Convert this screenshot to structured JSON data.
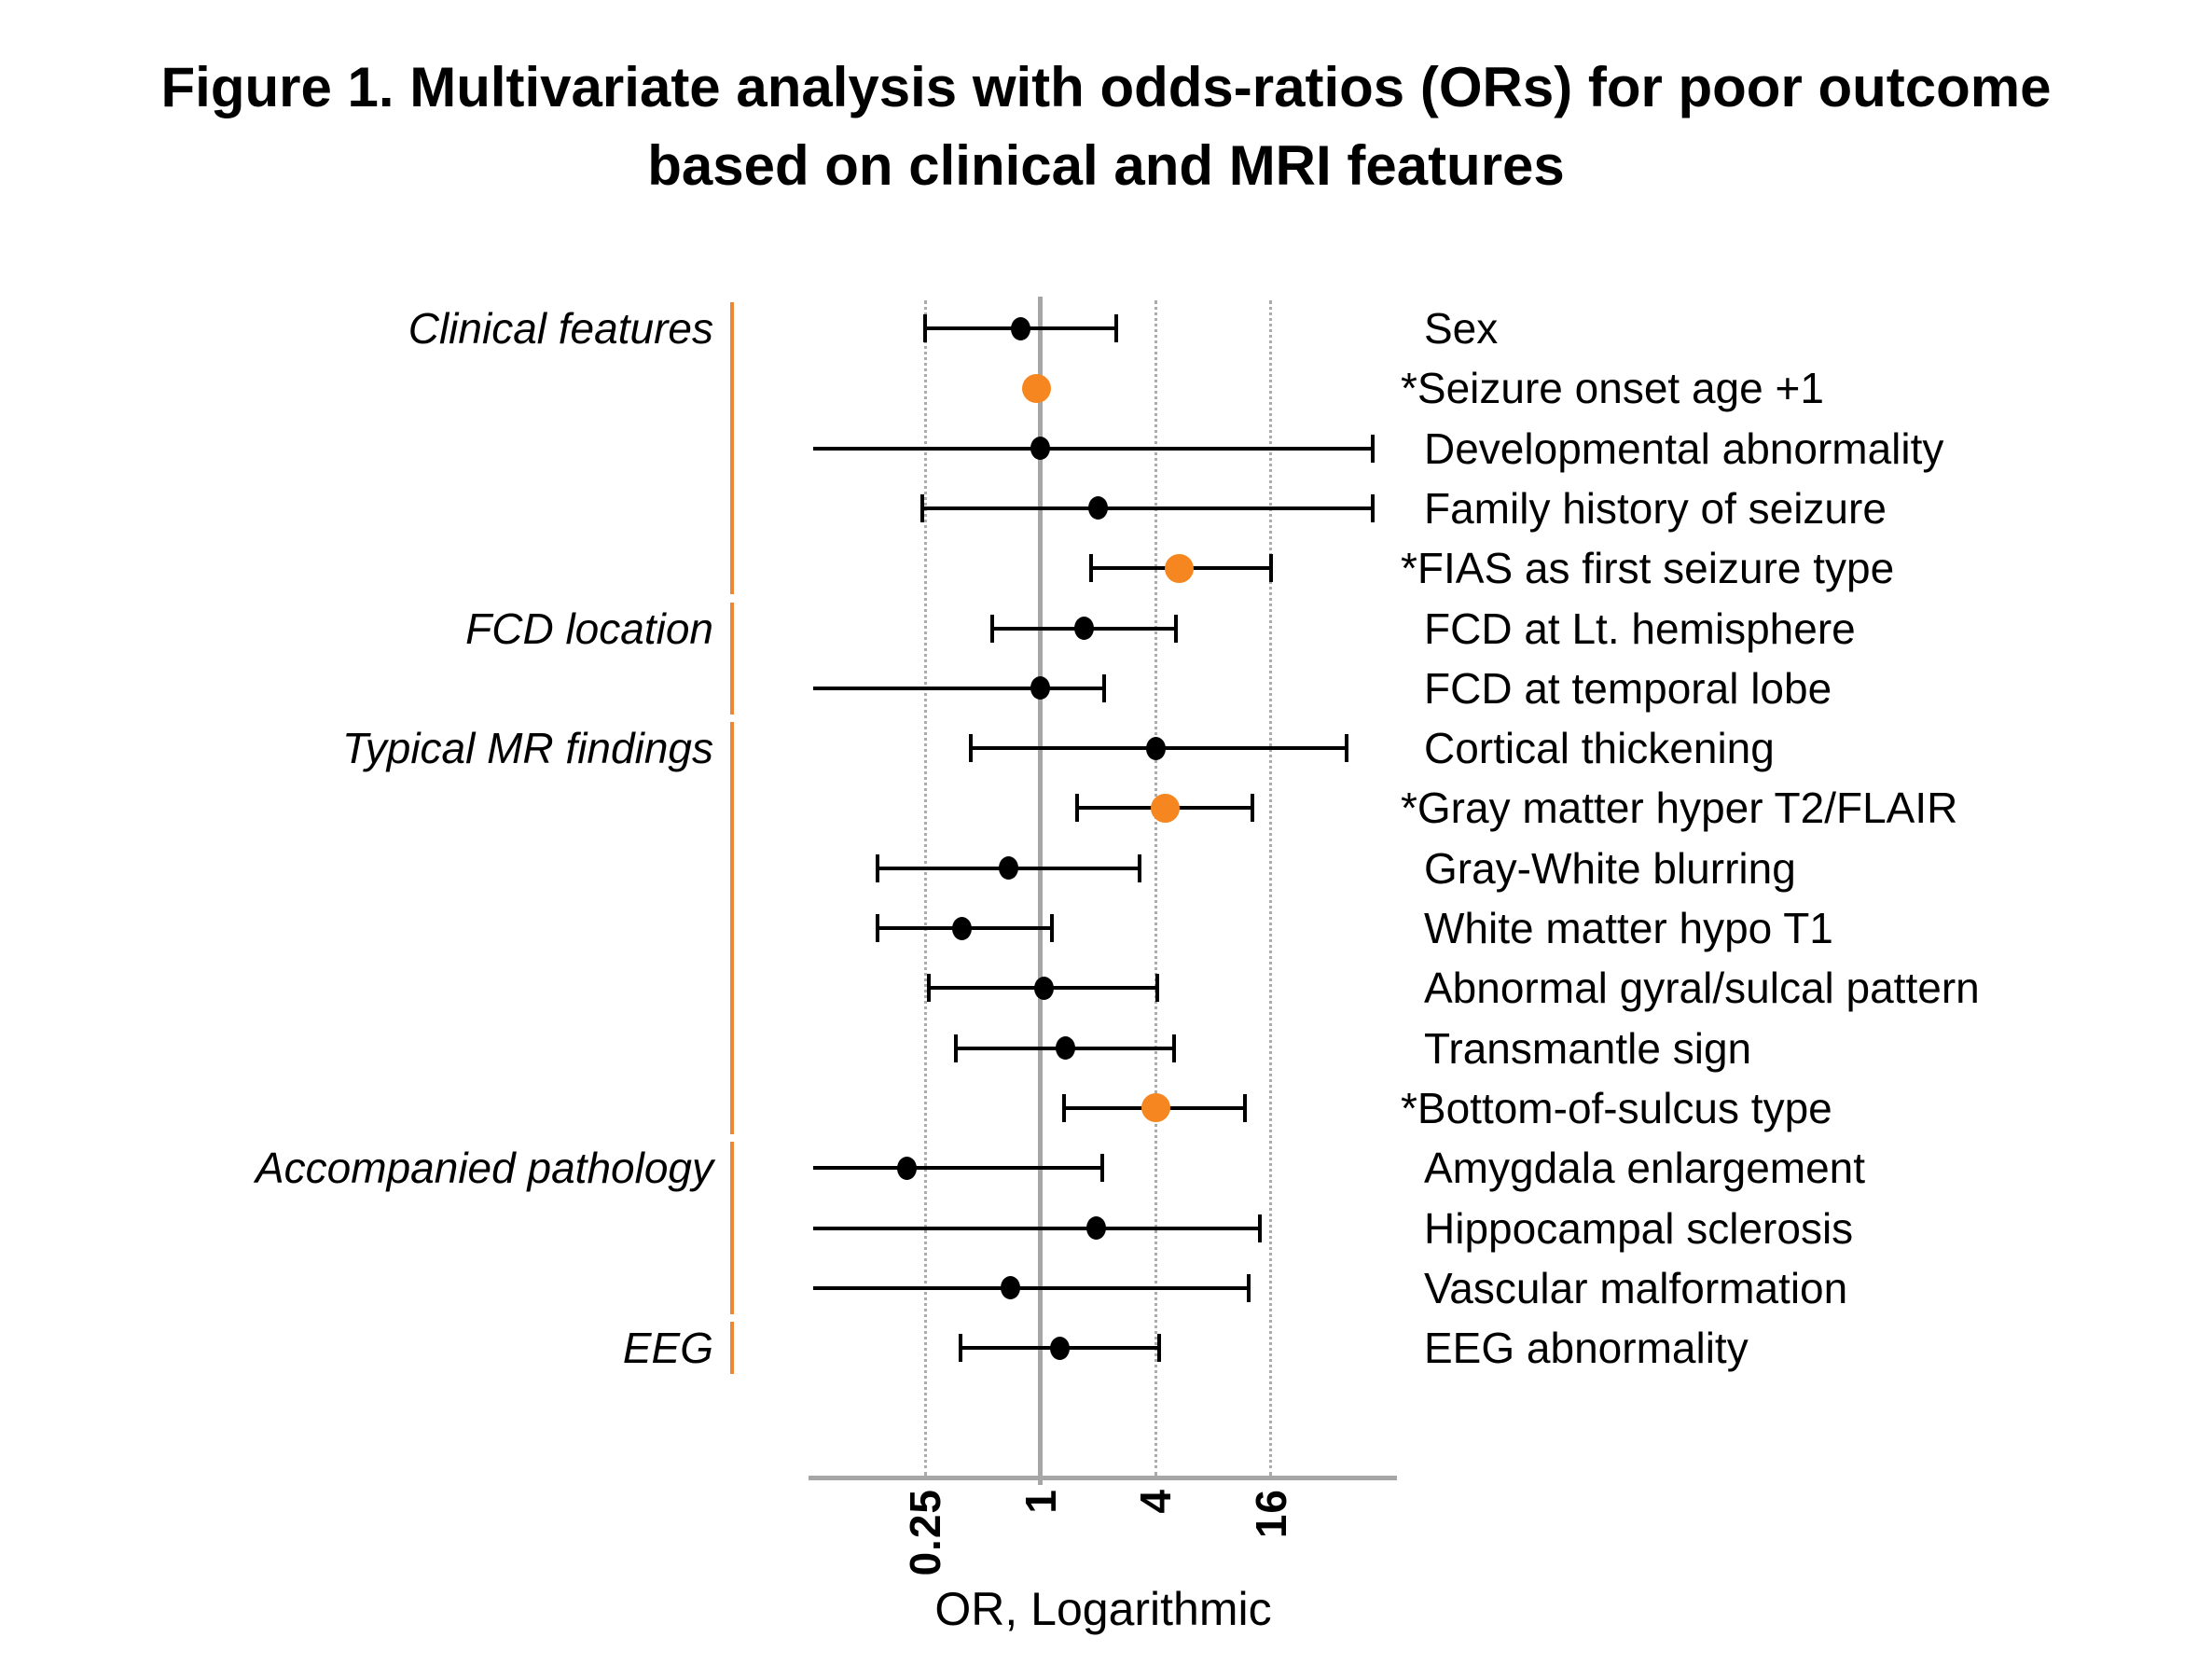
{
  "figure": {
    "title_line1": "Figure 1. Multivariate analysis with odds-ratios (ORs) for poor outcome",
    "title_line2": "based on clinical and MRI features"
  },
  "chart_data": {
    "type": "scatter",
    "subtype": "forest-plot",
    "title": "Figure 1. Multivariate analysis with odds-ratios (ORs) for poor outcome based on clinical and MRI features",
    "xlabel": "OR, Logarithmic",
    "x_scale": "log2",
    "xlim": [
      0.06,
      60
    ],
    "x_ticks": [
      0.25,
      1,
      4,
      16
    ],
    "x_tick_labels": [
      "0.25",
      "1",
      "4",
      "16"
    ],
    "reference_line_at": 1,
    "grid": "dotted vertical lines at ticks",
    "legend_position": "none",
    "marker_note": "orange large markers = significant (* labels), black small markers = non-significant",
    "sections": [
      {
        "label": "Clinical features",
        "first_row": 0,
        "last_row": 4
      },
      {
        "label": "FCD location",
        "first_row": 5,
        "last_row": 6
      },
      {
        "label": "Typical MR findings",
        "first_row": 7,
        "last_row": 13
      },
      {
        "label": "Accompanied pathology",
        "first_row": 14,
        "last_row": 16
      },
      {
        "label": "EEG",
        "first_row": 17,
        "last_row": 17
      }
    ],
    "rows": [
      {
        "label": "Sex",
        "or": 0.79,
        "ci_low": 0.25,
        "ci_high": 2.5,
        "significant": false,
        "ci_left_clipped": false
      },
      {
        "label": "*Seizure onset age +1",
        "or": 0.95,
        "ci_low": null,
        "ci_high": null,
        "significant": true,
        "ci_left_clipped": false
      },
      {
        "label": "Developmental abnormality",
        "or": 1.0,
        "ci_low": 0.065,
        "ci_high": 55,
        "significant": false,
        "ci_left_clipped": true
      },
      {
        "label": "Family history of seizure",
        "or": 2.0,
        "ci_low": 0.24,
        "ci_high": 55,
        "significant": false,
        "ci_left_clipped": false
      },
      {
        "label": "*FIAS as first seizure type",
        "or": 5.3,
        "ci_low": 1.85,
        "ci_high": 16,
        "significant": true,
        "ci_left_clipped": false
      },
      {
        "label": "FCD at Lt. hemisphere",
        "or": 1.7,
        "ci_low": 0.56,
        "ci_high": 5.1,
        "significant": false,
        "ci_left_clipped": false
      },
      {
        "label": "FCD at temporal lobe",
        "or": 1.0,
        "ci_low": 0.065,
        "ci_high": 2.15,
        "significant": false,
        "ci_left_clipped": true
      },
      {
        "label": "Cortical thickening",
        "or": 4.0,
        "ci_low": 0.43,
        "ci_high": 40,
        "significant": false,
        "ci_left_clipped": false
      },
      {
        "label": "*Gray matter hyper T2/FLAIR",
        "or": 4.5,
        "ci_low": 1.55,
        "ci_high": 12.8,
        "significant": true,
        "ci_left_clipped": false
      },
      {
        "label": "Gray-White blurring",
        "or": 0.68,
        "ci_low": 0.14,
        "ci_high": 3.3,
        "significant": false,
        "ci_left_clipped": false
      },
      {
        "label": "White matter hypo T1",
        "or": 0.39,
        "ci_low": 0.14,
        "ci_high": 1.15,
        "significant": false,
        "ci_left_clipped": false
      },
      {
        "label": "Abnormal gyral/sulcal pattern",
        "or": 1.04,
        "ci_low": 0.26,
        "ci_high": 4.1,
        "significant": false,
        "ci_left_clipped": false
      },
      {
        "label": "Transmantle sign",
        "or": 1.35,
        "ci_low": 0.36,
        "ci_high": 5.0,
        "significant": false,
        "ci_left_clipped": false
      },
      {
        "label": "*Bottom-of-sulcus type",
        "or": 4.0,
        "ci_low": 1.33,
        "ci_high": 11.7,
        "significant": true,
        "ci_left_clipped": false
      },
      {
        "label": "Amygdala enlargement",
        "or": 0.2,
        "ci_low": 0.065,
        "ci_high": 2.1,
        "significant": false,
        "ci_left_clipped": true
      },
      {
        "label": "Hippocampal sclerosis",
        "or": 1.95,
        "ci_low": 0.065,
        "ci_high": 14,
        "significant": false,
        "ci_left_clipped": true
      },
      {
        "label": "Vascular malformation",
        "or": 0.7,
        "ci_low": 0.065,
        "ci_high": 12.3,
        "significant": false,
        "ci_left_clipped": true
      },
      {
        "label": "EEG abnormality",
        "or": 1.27,
        "ci_low": 0.38,
        "ci_high": 4.2,
        "significant": false,
        "ci_left_clipped": false
      }
    ]
  },
  "colors": {
    "significant_marker_orange": "#F6861F",
    "nonsignificant_marker_black": "#000000",
    "section_divider_orange": "#ED8733",
    "axis_gray": "#A6A6A6",
    "grid_dotted_gray": "#ABABAB",
    "text_black": "#000000",
    "background": "#FFFFFF"
  }
}
